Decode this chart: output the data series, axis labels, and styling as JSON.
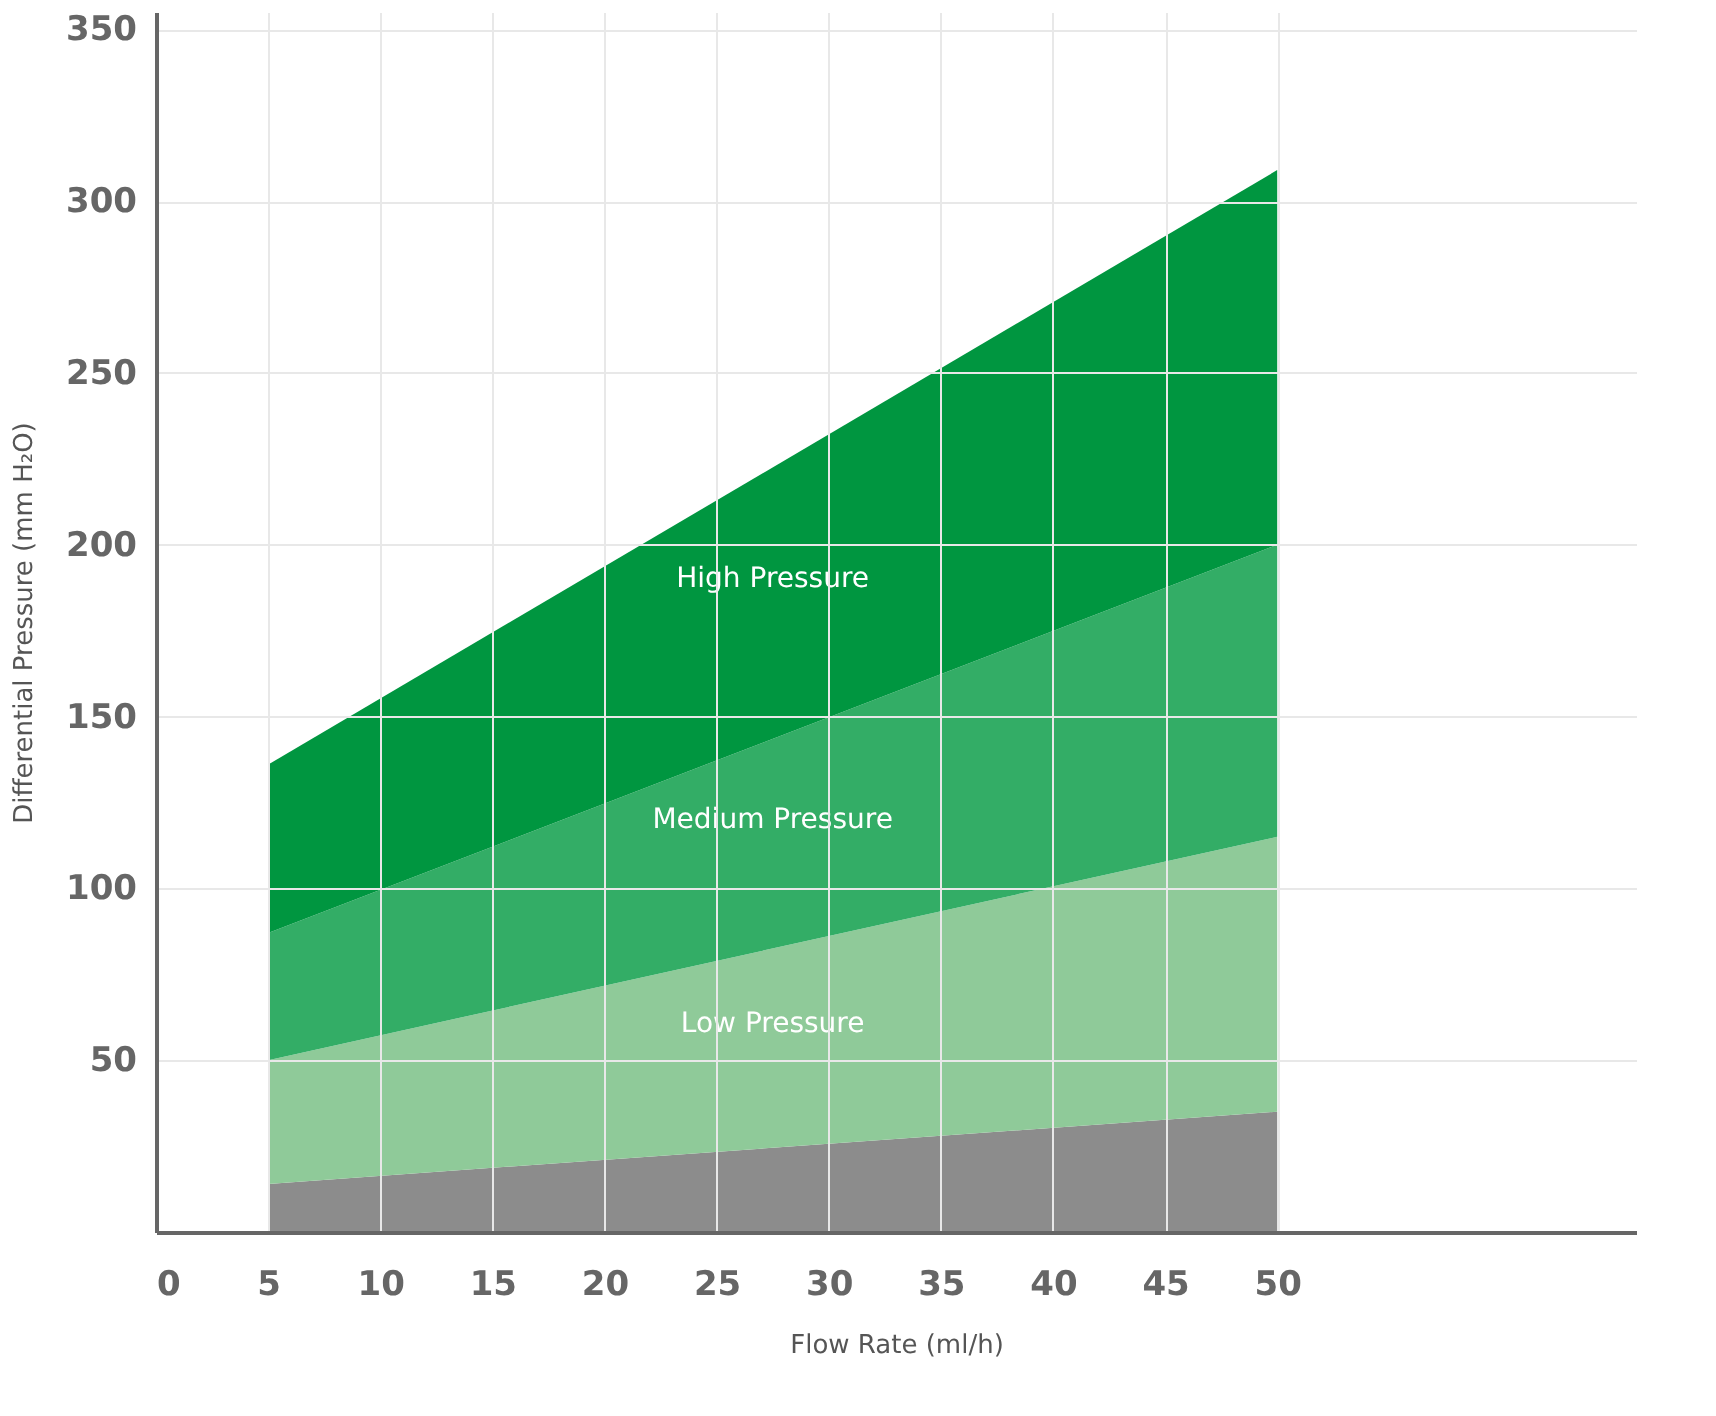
{
  "chart_data": {
    "type": "area",
    "xlabel": "Flow Rate (ml/h)",
    "ylabel": "Differential Pressure (mm H₂O)",
    "x": [
      5,
      50
    ],
    "stacked": true,
    "series": [
      {
        "color": "#8c8c8c",
        "values": [
          14,
          35
        ]
      },
      {
        "name": "Low Pressure",
        "color": "#8fca99",
        "values": [
          36,
          80
        ]
      },
      {
        "name": "Medium Pressure",
        "color": "#33ad66",
        "values": [
          37,
          85
        ]
      },
      {
        "name": "High Pressure",
        "color": "#009640",
        "values": [
          49,
          109
        ]
      }
    ],
    "xlim": [
      0,
      66
    ],
    "xticks": [
      0,
      5,
      10,
      15,
      20,
      25,
      30,
      35,
      40,
      45,
      50
    ],
    "ylim": [
      0,
      355
    ],
    "yticks": [
      50,
      100,
      150,
      200,
      250,
      300,
      350
    ],
    "grid": true
  }
}
